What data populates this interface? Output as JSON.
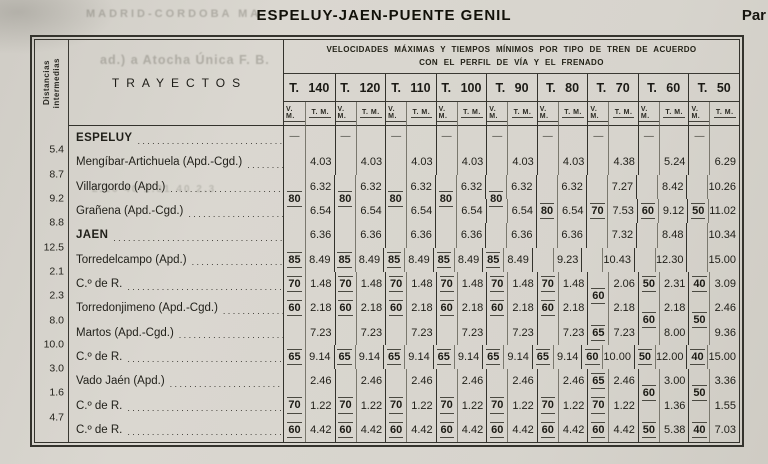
{
  "page": {
    "title": "ESPELUY-JAEN-PUENTE GENIL",
    "corner_right": "Par"
  },
  "bleedthrough": {
    "top": "MADRID-CORDOBA  MA",
    "mid": "ad.)  a  Atocha  Única  F. B.",
    "nums": "2.16  40  2.31  40  2.3"
  },
  "table": {
    "distance_header": [
      "Distancias",
      "intermedias"
    ],
    "trayectos_header": "TRAYECTOS",
    "band_header": [
      "VELOCIDADES MÁXIMAS Y TIEMPOS MÍNIMOS POR TIPO DE TREN DE ACUERDO",
      "CON EL PERFIL DE VÍA Y EL FRENADO"
    ],
    "groups": [
      "T. 140",
      "T. 120",
      "T. 110",
      "T. 100",
      "T. 90",
      "T. 80",
      "T. 70",
      "T. 60",
      "T. 50"
    ],
    "subcols": [
      "V. M.",
      "T. M."
    ],
    "rows": [
      {
        "dist": "",
        "name": "ESPELUY",
        "bold": true,
        "vm": [
          "—",
          "—",
          "—",
          "—",
          "—",
          "—",
          "—",
          "—",
          "—"
        ],
        "shift": [
          0,
          0,
          0,
          0,
          0,
          0,
          0,
          0,
          0
        ],
        "tm": [
          "",
          "",
          "",
          "",
          "",
          "",
          "",
          "",
          ""
        ]
      },
      {
        "dist": "5.4",
        "name": "Mengíbar-Artichuela (Apd.-Cgd.)",
        "bold": false,
        "vm": [
          "",
          "",
          "",
          "",
          "",
          "",
          "",
          "",
          ""
        ],
        "shift": [
          0,
          0,
          0,
          0,
          0,
          0,
          0,
          0,
          0
        ],
        "tm": [
          "4.03",
          "4.03",
          "4.03",
          "4.03",
          "4.03",
          "4.03",
          "4.38",
          "5.24",
          "6.29"
        ]
      },
      {
        "dist": "8.7",
        "name": "Villargordo (Apd.)",
        "bold": false,
        "vm": [
          "80",
          "80",
          "80",
          "80",
          "80",
          "",
          "",
          "",
          ""
        ],
        "shift": [
          1,
          1,
          1,
          1,
          1,
          0,
          0,
          0,
          0
        ],
        "tm": [
          "6.32",
          "6.32",
          "6.32",
          "6.32",
          "6.32",
          "6.32",
          "7.27",
          "8.42",
          "10.26"
        ]
      },
      {
        "dist": "9.2",
        "name": "Grañena (Apd.-Cgd.)",
        "bold": false,
        "vm": [
          "",
          "",
          "",
          "",
          "",
          "80",
          "70",
          "60",
          "50"
        ],
        "shift": [
          0,
          0,
          0,
          0,
          0,
          0,
          0,
          0,
          0
        ],
        "tm": [
          "6.54",
          "6.54",
          "6.54",
          "6.54",
          "6.54",
          "6.54",
          "7.53",
          "9.12",
          "11.02"
        ]
      },
      {
        "dist": "8.8",
        "name": "JAEN",
        "bold": true,
        "vm": [
          "",
          "",
          "",
          "",
          "",
          "",
          "",
          "",
          ""
        ],
        "shift": [
          0,
          0,
          0,
          0,
          0,
          0,
          0,
          0,
          0
        ],
        "tm": [
          "6.36",
          "6.36",
          "6.36",
          "6.36",
          "6.36",
          "6.36",
          "7.32",
          "8.48",
          "10.34"
        ]
      },
      {
        "dist": "12.5",
        "name": "Torredelcampo (Apd.)",
        "bold": false,
        "vm": [
          "85",
          "85",
          "85",
          "85",
          "85",
          "",
          "",
          "",
          ""
        ],
        "shift": [
          0,
          0,
          0,
          0,
          0,
          0,
          0,
          0,
          0
        ],
        "tm": [
          "8.49",
          "8.49",
          "8.49",
          "8.49",
          "8.49",
          "9.23",
          "10.43",
          "12.30",
          "15.00"
        ]
      },
      {
        "dist": "2.1",
        "name": "C.º de R.",
        "bold": false,
        "vm": [
          "70",
          "70",
          "70",
          "70",
          "70",
          "70",
          "60",
          "50",
          "40"
        ],
        "shift": [
          0,
          0,
          0,
          0,
          0,
          0,
          1,
          0,
          0
        ],
        "tm": [
          "1.48",
          "1.48",
          "1.48",
          "1.48",
          "1.48",
          "1.48",
          "2.06",
          "2.31",
          "3.09"
        ]
      },
      {
        "dist": "2.3",
        "name": "Torredonjimeno (Apd.-Cgd.)",
        "bold": false,
        "vm": [
          "60",
          "60",
          "60",
          "60",
          "60",
          "60",
          "",
          "60",
          "50"
        ],
        "shift": [
          0,
          0,
          0,
          0,
          0,
          0,
          0,
          1,
          1
        ],
        "tm": [
          "2.18",
          "2.18",
          "2.18",
          "2.18",
          "2.18",
          "2.18",
          "2.18",
          "2.18",
          "2.46"
        ]
      },
      {
        "dist": "8.0",
        "name": "Martos (Apd.-Cgd.)",
        "bold": false,
        "vm": [
          "",
          "",
          "",
          "",
          "",
          "",
          "65",
          "",
          ""
        ],
        "shift": [
          0,
          0,
          0,
          0,
          0,
          0,
          0,
          0,
          0
        ],
        "tm": [
          "7.23",
          "7.23",
          "7.23",
          "7.23",
          "7.23",
          "7.23",
          "7.23",
          "8.00",
          "9.36"
        ]
      },
      {
        "dist": "10.0",
        "name": "C.º de R.",
        "bold": false,
        "vm": [
          "65",
          "65",
          "65",
          "65",
          "65",
          "65",
          "60",
          "50",
          "40"
        ],
        "shift": [
          0,
          0,
          0,
          0,
          0,
          0,
          0,
          0,
          0
        ],
        "tm": [
          "9.14",
          "9.14",
          "9.14",
          "9.14",
          "9.14",
          "9.14",
          "10.00",
          "12.00",
          "15.00"
        ]
      },
      {
        "dist": "3.0",
        "name": "Vado Jaén (Apd.)",
        "bold": false,
        "vm": [
          "",
          "",
          "",
          "",
          "",
          "",
          "65",
          "60",
          "50"
        ],
        "shift": [
          0,
          0,
          0,
          0,
          0,
          0,
          0,
          1,
          1
        ],
        "tm": [
          "2.46",
          "2.46",
          "2.46",
          "2.46",
          "2.46",
          "2.46",
          "2.46",
          "3.00",
          "3.36"
        ]
      },
      {
        "dist": "1.6",
        "name": "C.º de R.",
        "bold": false,
        "vm": [
          "70",
          "70",
          "70",
          "70",
          "70",
          "70",
          "70",
          "",
          ""
        ],
        "shift": [
          0,
          0,
          0,
          0,
          0,
          0,
          0,
          0,
          0
        ],
        "tm": [
          "1.22",
          "1.22",
          "1.22",
          "1.22",
          "1.22",
          "1.22",
          "1.22",
          "1.36",
          "1.55"
        ]
      },
      {
        "dist": "4.7",
        "name": "C.º de R.",
        "bold": false,
        "vm": [
          "60",
          "60",
          "60",
          "60",
          "60",
          "60",
          "60",
          "50",
          "40"
        ],
        "shift": [
          0,
          0,
          0,
          0,
          0,
          0,
          0,
          0,
          0
        ],
        "tm": [
          "4.42",
          "4.42",
          "4.42",
          "4.42",
          "4.42",
          "4.42",
          "4.42",
          "5.38",
          "7.03"
        ]
      }
    ]
  }
}
